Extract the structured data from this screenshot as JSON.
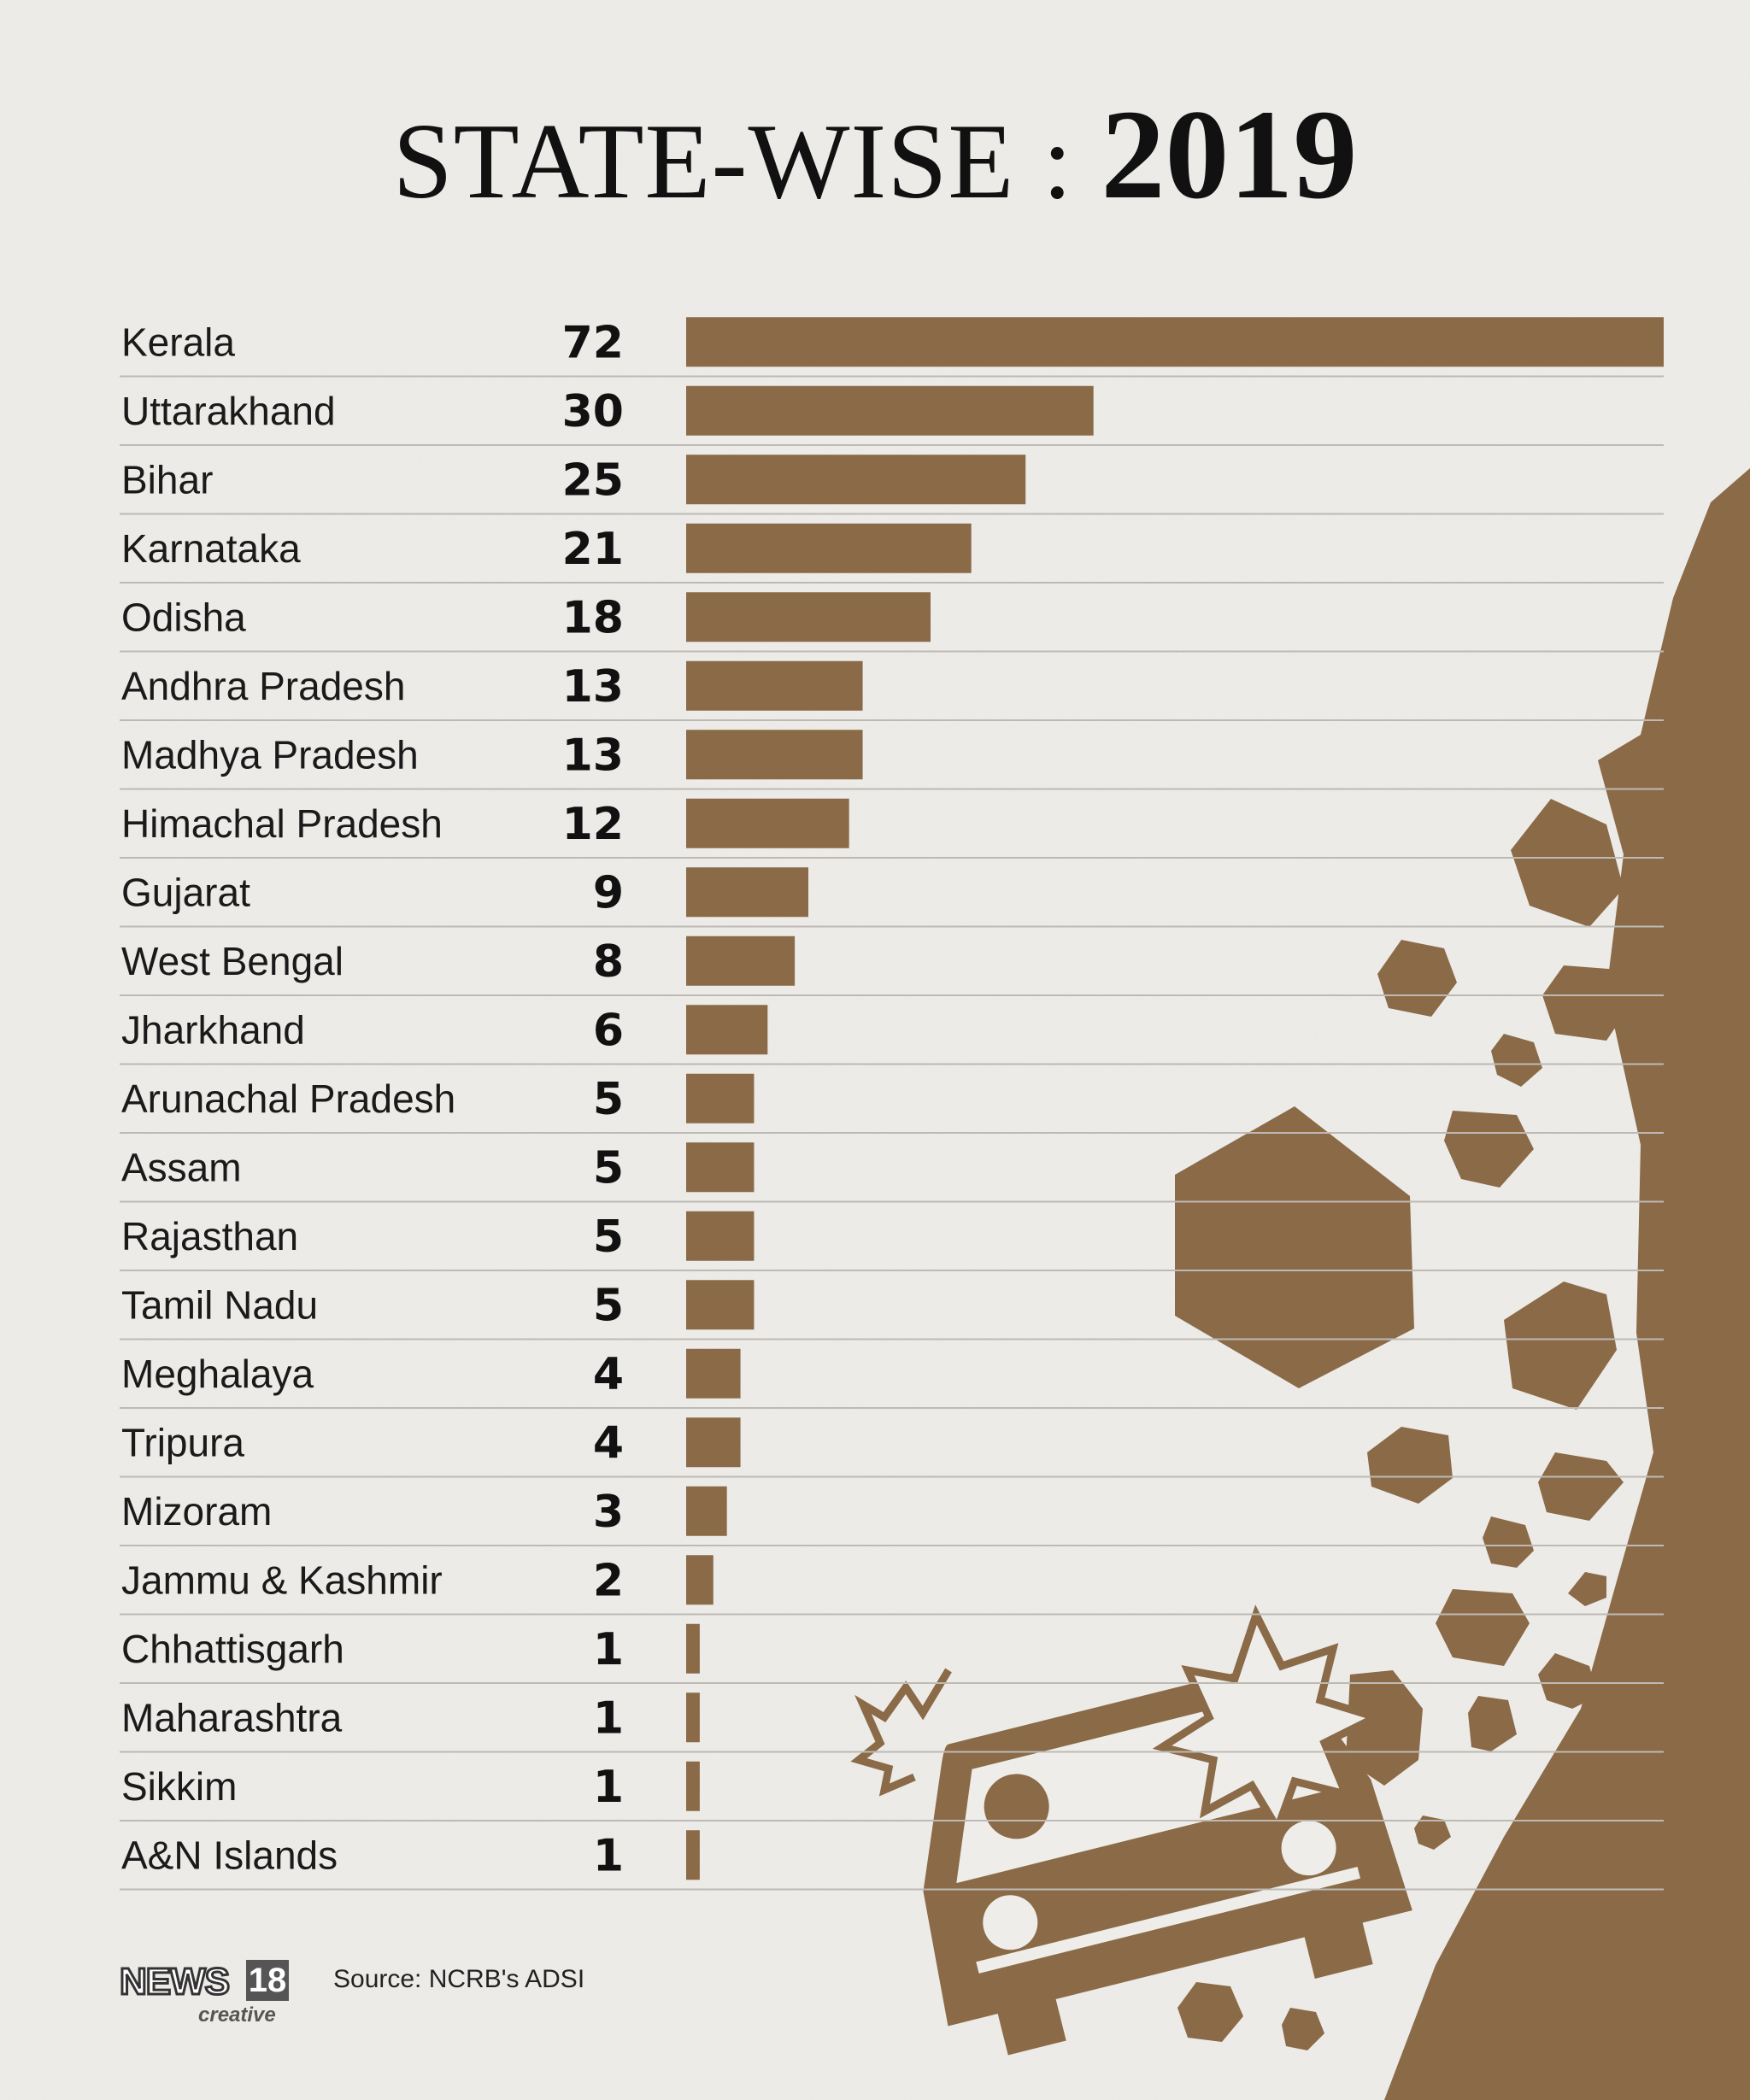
{
  "header": {
    "title_main": "STATE-WISE : ",
    "title_year": "2019"
  },
  "footer": {
    "source": "Source: NCRB's ADSI",
    "logo_news": "NEWS",
    "logo_number": "18",
    "logo_sub": "creative"
  },
  "colors": {
    "bar": "#8a6a47",
    "text": "#1a1a1a",
    "rule": "#bdbab5",
    "background": "#efedea"
  },
  "chart_data": {
    "type": "bar",
    "orientation": "horizontal",
    "title": "STATE-WISE : 2019",
    "categories": [
      "Kerala",
      "Uttarakhand",
      "Bihar",
      "Karnataka",
      "Odisha",
      "Andhra Pradesh",
      "Madhya Pradesh",
      "Himachal Pradesh",
      "Gujarat",
      "West Bengal",
      "Jharkhand",
      "Arunachal Pradesh",
      "Assam",
      "Rajasthan",
      "Tamil Nadu",
      "Meghalaya",
      "Tripura",
      "Mizoram",
      "Jammu & Kashmir",
      "Chhattisgarh",
      "Maharashtra",
      "Sikkim",
      "A&N Islands"
    ],
    "values": [
      72,
      30,
      25,
      21,
      18,
      13,
      13,
      12,
      9,
      8,
      6,
      5,
      5,
      5,
      5,
      4,
      4,
      3,
      2,
      1,
      1,
      1,
      1
    ],
    "xlim": [
      0,
      72
    ],
    "grid": false,
    "legend": "none"
  }
}
